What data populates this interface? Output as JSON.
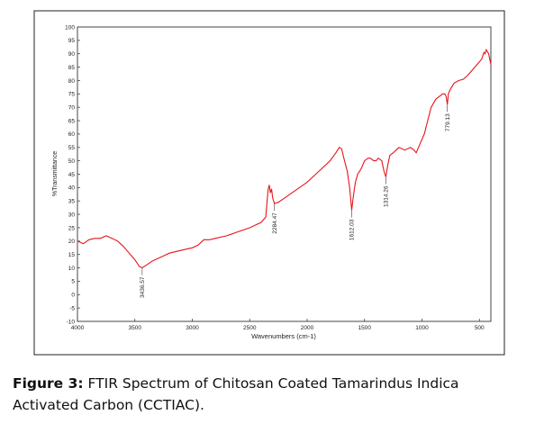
{
  "chart_data": {
    "type": "line",
    "xlabel": "Wavenumbers (cm-1)",
    "ylabel": "%Transmittance",
    "xlim": [
      4000,
      400
    ],
    "ylim": [
      -10,
      100
    ],
    "x_ticks": [
      4000,
      3500,
      3000,
      2500,
      2000,
      1500,
      1000,
      500
    ],
    "y_ticks": [
      -10,
      -5,
      0,
      5,
      10,
      15,
      20,
      25,
      30,
      35,
      40,
      45,
      50,
      55,
      60,
      65,
      70,
      75,
      80,
      85,
      90,
      95,
      100
    ],
    "grid": false,
    "series": [
      {
        "color": "#e8141c",
        "points": [
          [
            4000,
            20
          ],
          [
            3950,
            19
          ],
          [
            3900,
            20.5
          ],
          [
            3850,
            21
          ],
          [
            3800,
            21
          ],
          [
            3750,
            22
          ],
          [
            3700,
            21
          ],
          [
            3650,
            20
          ],
          [
            3600,
            18
          ],
          [
            3550,
            15.5
          ],
          [
            3500,
            13
          ],
          [
            3460,
            10.5
          ],
          [
            3436.57,
            10
          ],
          [
            3400,
            11
          ],
          [
            3350,
            12.5
          ],
          [
            3300,
            13.5
          ],
          [
            3250,
            14.5
          ],
          [
            3200,
            15.5
          ],
          [
            3150,
            16
          ],
          [
            3100,
            16.5
          ],
          [
            3050,
            17
          ],
          [
            3000,
            17.5
          ],
          [
            2950,
            18.5
          ],
          [
            2900,
            20.5
          ],
          [
            2850,
            20.5
          ],
          [
            2800,
            21
          ],
          [
            2700,
            22
          ],
          [
            2600,
            23.5
          ],
          [
            2500,
            25
          ],
          [
            2450,
            26
          ],
          [
            2400,
            27
          ],
          [
            2360,
            29
          ],
          [
            2340,
            39
          ],
          [
            2330,
            41
          ],
          [
            2320,
            38
          ],
          [
            2310,
            39.5
          ],
          [
            2300,
            36
          ],
          [
            2284.47,
            34
          ],
          [
            2250,
            34.5
          ],
          [
            2200,
            36
          ],
          [
            2100,
            39
          ],
          [
            2000,
            42
          ],
          [
            1900,
            46
          ],
          [
            1800,
            50
          ],
          [
            1750,
            53
          ],
          [
            1720,
            55
          ],
          [
            1700,
            54.5
          ],
          [
            1680,
            51
          ],
          [
            1650,
            46
          ],
          [
            1630,
            40
          ],
          [
            1612.03,
            31.5
          ],
          [
            1600,
            36
          ],
          [
            1580,
            42
          ],
          [
            1560,
            45
          ],
          [
            1530,
            47
          ],
          [
            1500,
            50
          ],
          [
            1470,
            51
          ],
          [
            1450,
            51
          ],
          [
            1420,
            50
          ],
          [
            1400,
            50
          ],
          [
            1380,
            51
          ],
          [
            1350,
            50
          ],
          [
            1330,
            46
          ],
          [
            1314.26,
            44
          ],
          [
            1300,
            48
          ],
          [
            1280,
            52
          ],
          [
            1250,
            53
          ],
          [
            1200,
            55
          ],
          [
            1150,
            54
          ],
          [
            1100,
            55
          ],
          [
            1070,
            54
          ],
          [
            1050,
            53
          ],
          [
            1020,
            56
          ],
          [
            980,
            60
          ],
          [
            950,
            65
          ],
          [
            920,
            70
          ],
          [
            880,
            73
          ],
          [
            850,
            74
          ],
          [
            820,
            75
          ],
          [
            800,
            75
          ],
          [
            790,
            74
          ],
          [
            779.13,
            71
          ],
          [
            770,
            75
          ],
          [
            750,
            77
          ],
          [
            720,
            79
          ],
          [
            680,
            80
          ],
          [
            640,
            80.5
          ],
          [
            600,
            82
          ],
          [
            560,
            84
          ],
          [
            520,
            86
          ],
          [
            480,
            88
          ],
          [
            460,
            90.5
          ],
          [
            450,
            90
          ],
          [
            440,
            91.5
          ],
          [
            420,
            90
          ],
          [
            400,
            86
          ]
        ]
      }
    ],
    "peak_labels": [
      {
        "text": "3436.57",
        "x": 3436.57,
        "y": 10
      },
      {
        "text": "2284.47",
        "x": 2284.47,
        "y": 34
      },
      {
        "text": "1612.03",
        "x": 1612.03,
        "y": 31.5
      },
      {
        "text": "1314.26",
        "x": 1314.26,
        "y": 44
      },
      {
        "text": "779.13",
        "x": 779.13,
        "y": 71
      }
    ]
  },
  "caption": {
    "label": "Figure 3:",
    "text": " FTIR Spectrum of Chitosan Coated Tamarindus Indica Activated Carbon (CCTIAC)."
  }
}
